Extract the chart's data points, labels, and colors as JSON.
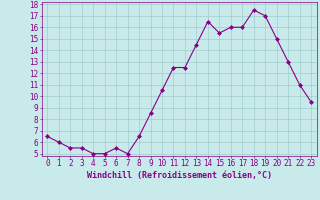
{
  "x": [
    0,
    1,
    2,
    3,
    4,
    5,
    6,
    7,
    8,
    9,
    10,
    11,
    12,
    13,
    14,
    15,
    16,
    17,
    18,
    19,
    20,
    21,
    22,
    23
  ],
  "y": [
    6.5,
    6.0,
    5.5,
    5.5,
    5.0,
    5.0,
    5.5,
    5.0,
    6.5,
    8.5,
    10.5,
    12.5,
    12.5,
    14.5,
    16.5,
    15.5,
    16.0,
    16.0,
    17.5,
    17.0,
    15.0,
    13.0,
    11.0,
    9.5
  ],
  "xlim_min": -0.5,
  "xlim_max": 23.5,
  "ylim_min": 4.8,
  "ylim_max": 18.2,
  "yticks": [
    5,
    6,
    7,
    8,
    9,
    10,
    11,
    12,
    13,
    14,
    15,
    16,
    17,
    18
  ],
  "xticks": [
    0,
    1,
    2,
    3,
    4,
    5,
    6,
    7,
    8,
    9,
    10,
    11,
    12,
    13,
    14,
    15,
    16,
    17,
    18,
    19,
    20,
    21,
    22,
    23
  ],
  "xlabel": "Windchill (Refroidissement éolien,°C)",
  "line_color": "#880088",
  "marker": "D",
  "marker_size": 2.0,
  "bg_color": "#c8eaea",
  "grid_color": "#a0cccc",
  "xlabel_color": "#880088",
  "tick_color": "#880088",
  "tick_fontsize": 5.5,
  "xlabel_fontsize": 6.0,
  "figsize": [
    3.2,
    2.0
  ],
  "dpi": 100
}
